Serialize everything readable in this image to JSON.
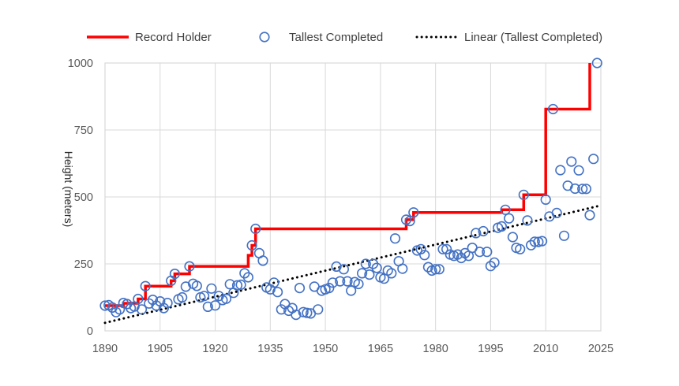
{
  "chart_data": {
    "type": "scatter",
    "title": "",
    "xlabel": "",
    "ylabel": "Height (meters)",
    "xlim": [
      1890,
      2025
    ],
    "ylim": [
      0,
      1000
    ],
    "x_ticks": [
      1890,
      1905,
      1920,
      1935,
      1950,
      1965,
      1980,
      1995,
      2010,
      2025
    ],
    "y_ticks": [
      0,
      250,
      500,
      750,
      1000
    ],
    "grid": {
      "x": true,
      "y": true
    },
    "legend_position": "top",
    "legend": [
      "Record Holder",
      "Tallest Completed",
      "Linear (Tallest Completed)"
    ],
    "series": [
      {
        "name": "Record Holder",
        "kind": "step-line",
        "color": "#ff0000",
        "points": [
          [
            1890,
            94
          ],
          [
            1895,
            94
          ],
          [
            1895,
            103
          ],
          [
            1899,
            103
          ],
          [
            1899,
            119
          ],
          [
            1901,
            119
          ],
          [
            1901,
            167
          ],
          [
            1908,
            167
          ],
          [
            1908,
            187
          ],
          [
            1909,
            187
          ],
          [
            1909,
            213
          ],
          [
            1913,
            213
          ],
          [
            1913,
            241
          ],
          [
            1929,
            241
          ],
          [
            1929,
            282
          ],
          [
            1930,
            282
          ],
          [
            1930,
            319
          ],
          [
            1931,
            319
          ],
          [
            1931,
            381
          ],
          [
            1972,
            381
          ],
          [
            1972,
            415
          ],
          [
            1974,
            415
          ],
          [
            1974,
            442
          ],
          [
            1998,
            442
          ],
          [
            1998,
            452
          ],
          [
            2004,
            452
          ],
          [
            2004,
            508
          ],
          [
            2010,
            508
          ],
          [
            2010,
            828
          ],
          [
            2022,
            828
          ],
          [
            2022,
            1000
          ]
        ]
      },
      {
        "name": "Tallest Completed",
        "kind": "scatter",
        "color": "#4472c4",
        "points": [
          [
            1890,
            94
          ],
          [
            1891,
            96
          ],
          [
            1892,
            87
          ],
          [
            1893,
            70
          ],
          [
            1894,
            80
          ],
          [
            1895,
            104
          ],
          [
            1896,
            100
          ],
          [
            1897,
            85
          ],
          [
            1898,
            91
          ],
          [
            1899,
            119
          ],
          [
            1900,
            80
          ],
          [
            1901,
            167
          ],
          [
            1902,
            102
          ],
          [
            1903,
            116
          ],
          [
            1904,
            94
          ],
          [
            1905,
            110
          ],
          [
            1906,
            85
          ],
          [
            1907,
            104
          ],
          [
            1908,
            187
          ],
          [
            1909,
            213
          ],
          [
            1910,
            118
          ],
          [
            1911,
            125
          ],
          [
            1912,
            165
          ],
          [
            1913,
            241
          ],
          [
            1914,
            176
          ],
          [
            1915,
            168
          ],
          [
            1916,
            125
          ],
          [
            1917,
            130
          ],
          [
            1918,
            90
          ],
          [
            1919,
            158
          ],
          [
            1920,
            95
          ],
          [
            1921,
            130
          ],
          [
            1922,
            115
          ],
          [
            1923,
            120
          ],
          [
            1924,
            174
          ],
          [
            1925,
            142
          ],
          [
            1926,
            170
          ],
          [
            1927,
            172
          ],
          [
            1928,
            215
          ],
          [
            1929,
            200
          ],
          [
            1930,
            319
          ],
          [
            1931,
            381
          ],
          [
            1932,
            290
          ],
          [
            1933,
            262
          ],
          [
            1934,
            162
          ],
          [
            1935,
            155
          ],
          [
            1936,
            180
          ],
          [
            1937,
            145
          ],
          [
            1938,
            80
          ],
          [
            1939,
            100
          ],
          [
            1940,
            75
          ],
          [
            1941,
            85
          ],
          [
            1942,
            60
          ],
          [
            1943,
            160
          ],
          [
            1944,
            70
          ],
          [
            1945,
            67
          ],
          [
            1946,
            65
          ],
          [
            1947,
            165
          ],
          [
            1948,
            80
          ],
          [
            1949,
            150
          ],
          [
            1950,
            155
          ],
          [
            1951,
            160
          ],
          [
            1952,
            180
          ],
          [
            1953,
            240
          ],
          [
            1954,
            185
          ],
          [
            1955,
            230
          ],
          [
            1956,
            185
          ],
          [
            1957,
            150
          ],
          [
            1958,
            182
          ],
          [
            1959,
            175
          ],
          [
            1960,
            215
          ],
          [
            1961,
            250
          ],
          [
            1962,
            210
          ],
          [
            1963,
            250
          ],
          [
            1964,
            235
          ],
          [
            1965,
            200
          ],
          [
            1966,
            195
          ],
          [
            1967,
            225
          ],
          [
            1968,
            215
          ],
          [
            1969,
            345
          ],
          [
            1970,
            260
          ],
          [
            1971,
            232
          ],
          [
            1972,
            415
          ],
          [
            1973,
            410
          ],
          [
            1974,
            442
          ],
          [
            1975,
            300
          ],
          [
            1976,
            305
          ],
          [
            1977,
            283
          ],
          [
            1978,
            238
          ],
          [
            1979,
            225
          ],
          [
            1980,
            230
          ],
          [
            1981,
            230
          ],
          [
            1982,
            305
          ],
          [
            1983,
            305
          ],
          [
            1984,
            285
          ],
          [
            1985,
            280
          ],
          [
            1986,
            285
          ],
          [
            1987,
            272
          ],
          [
            1988,
            290
          ],
          [
            1989,
            280
          ],
          [
            1990,
            310
          ],
          [
            1991,
            365
          ],
          [
            1992,
            295
          ],
          [
            1993,
            372
          ],
          [
            1994,
            295
          ],
          [
            1995,
            242
          ],
          [
            1996,
            255
          ],
          [
            1997,
            385
          ],
          [
            1998,
            390
          ],
          [
            1999,
            452
          ],
          [
            2000,
            420
          ],
          [
            2001,
            350
          ],
          [
            2002,
            310
          ],
          [
            2003,
            305
          ],
          [
            2004,
            508
          ],
          [
            2005,
            412
          ],
          [
            2006,
            320
          ],
          [
            2007,
            333
          ],
          [
            2008,
            332
          ],
          [
            2009,
            335
          ],
          [
            2010,
            490
          ],
          [
            2011,
            427
          ],
          [
            2012,
            828
          ],
          [
            2013,
            440
          ],
          [
            2014,
            600
          ],
          [
            2015,
            355
          ],
          [
            2016,
            542
          ],
          [
            2017,
            632
          ],
          [
            2018,
            531
          ],
          [
            2019,
            599
          ],
          [
            2020,
            530
          ],
          [
            2021,
            530
          ],
          [
            2022,
            432
          ],
          [
            2023,
            642
          ],
          [
            2024,
            1000
          ]
        ]
      },
      {
        "name": "Linear (Tallest Completed)",
        "kind": "trendline",
        "color": "#000000",
        "points": [
          [
            1890,
            30
          ],
          [
            2024,
            465
          ]
        ]
      }
    ]
  }
}
